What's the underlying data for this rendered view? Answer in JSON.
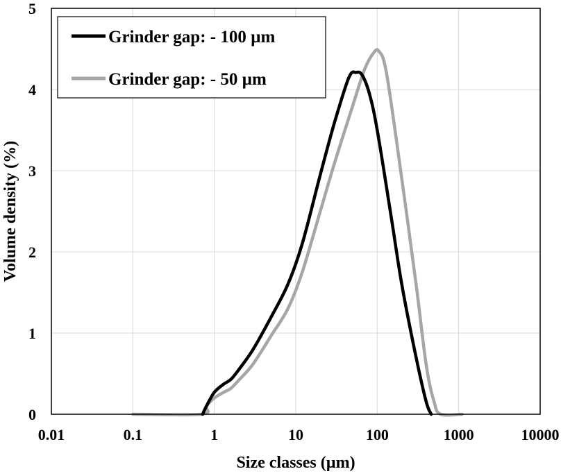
{
  "chart_data": {
    "type": "line",
    "title": "",
    "xlabel": "Size classes (µm)",
    "ylabel": "Volume density (%)",
    "xscale": "log",
    "xlim": [
      0.01,
      10000
    ],
    "ylim": [
      0,
      5
    ],
    "x_ticks": [
      0.01,
      0.1,
      1,
      10,
      100,
      1000,
      10000
    ],
    "x_tick_labels": [
      "0.01",
      "0.1",
      "1",
      "10",
      "100",
      "1000",
      "10000"
    ],
    "y_ticks": [
      0,
      1,
      2,
      3,
      4,
      5
    ],
    "y_tick_labels": [
      "0",
      "1",
      "2",
      "3",
      "4",
      "5"
    ],
    "grid": true,
    "legend_position": "top-left",
    "series": [
      {
        "name": "Grinder gap: - 100 µm",
        "color": "#000000",
        "x": [
          0.72,
          0.8,
          1.0,
          1.3,
          1.6,
          2.0,
          3.0,
          5.0,
          8.0,
          12.0,
          20.0,
          30.0,
          45.0,
          55.0,
          65.0,
          80.0,
          100.0,
          150.0,
          200.0,
          300.0,
          400.0,
          460.0
        ],
        "y": [
          0.0,
          0.1,
          0.27,
          0.37,
          0.43,
          0.55,
          0.8,
          1.2,
          1.6,
          2.1,
          2.95,
          3.6,
          4.15,
          4.21,
          4.18,
          3.95,
          3.5,
          2.4,
          1.6,
          0.7,
          0.15,
          0.0
        ]
      },
      {
        "name": "Grinder gap: - 50 µm",
        "color": "#a6a6a6",
        "x": [
          0.1,
          0.7,
          0.8,
          1.0,
          1.3,
          1.6,
          2.0,
          3.0,
          5.0,
          8.0,
          12.0,
          20.0,
          30.0,
          50.0,
          70.0,
          90.0,
          105.0,
          130.0,
          200.0,
          300.0,
          400.0,
          500.0,
          600.0,
          1100.0
        ],
        "y": [
          0.0,
          0.0,
          0.1,
          0.2,
          0.27,
          0.32,
          0.42,
          0.62,
          0.97,
          1.3,
          1.75,
          2.5,
          3.1,
          3.8,
          4.25,
          4.45,
          4.47,
          4.2,
          2.9,
          1.6,
          0.6,
          0.15,
          0.0,
          0.0
        ]
      }
    ]
  }
}
